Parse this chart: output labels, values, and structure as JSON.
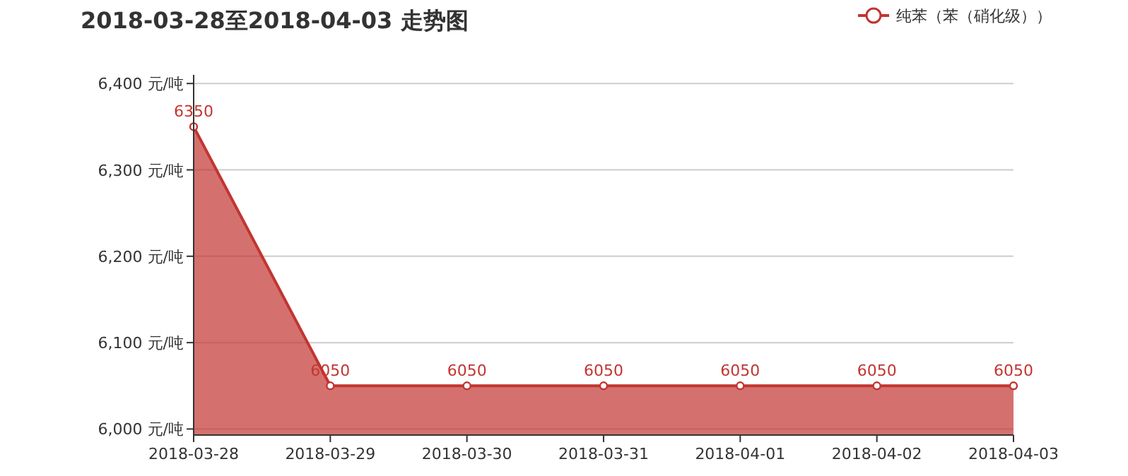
{
  "chart_data": {
    "type": "area",
    "title": "2018-03-28至2018-04-03 走势图",
    "categories": [
      "2018-03-28",
      "2018-03-29",
      "2018-03-30",
      "2018-03-31",
      "2018-04-01",
      "2018-04-02",
      "2018-04-03"
    ],
    "series": [
      {
        "name": "纯苯（苯（硝化级））",
        "color": "#c23531",
        "values": [
          6350,
          6050,
          6050,
          6050,
          6050,
          6050,
          6050
        ]
      }
    ],
    "ylim": [
      5993,
      6410
    ],
    "yticks": [
      {
        "value": 6000,
        "label": "6,000 元/吨"
      },
      {
        "value": 6100,
        "label": "6,100 元/吨"
      },
      {
        "value": 6200,
        "label": "6,200 元/吨"
      },
      {
        "value": 6300,
        "label": "6,300 元/吨"
      },
      {
        "value": 6400,
        "label": "6,400 元/吨"
      }
    ],
    "grid": "y",
    "legend": "top right",
    "marker": "circle",
    "data_labels": true
  }
}
